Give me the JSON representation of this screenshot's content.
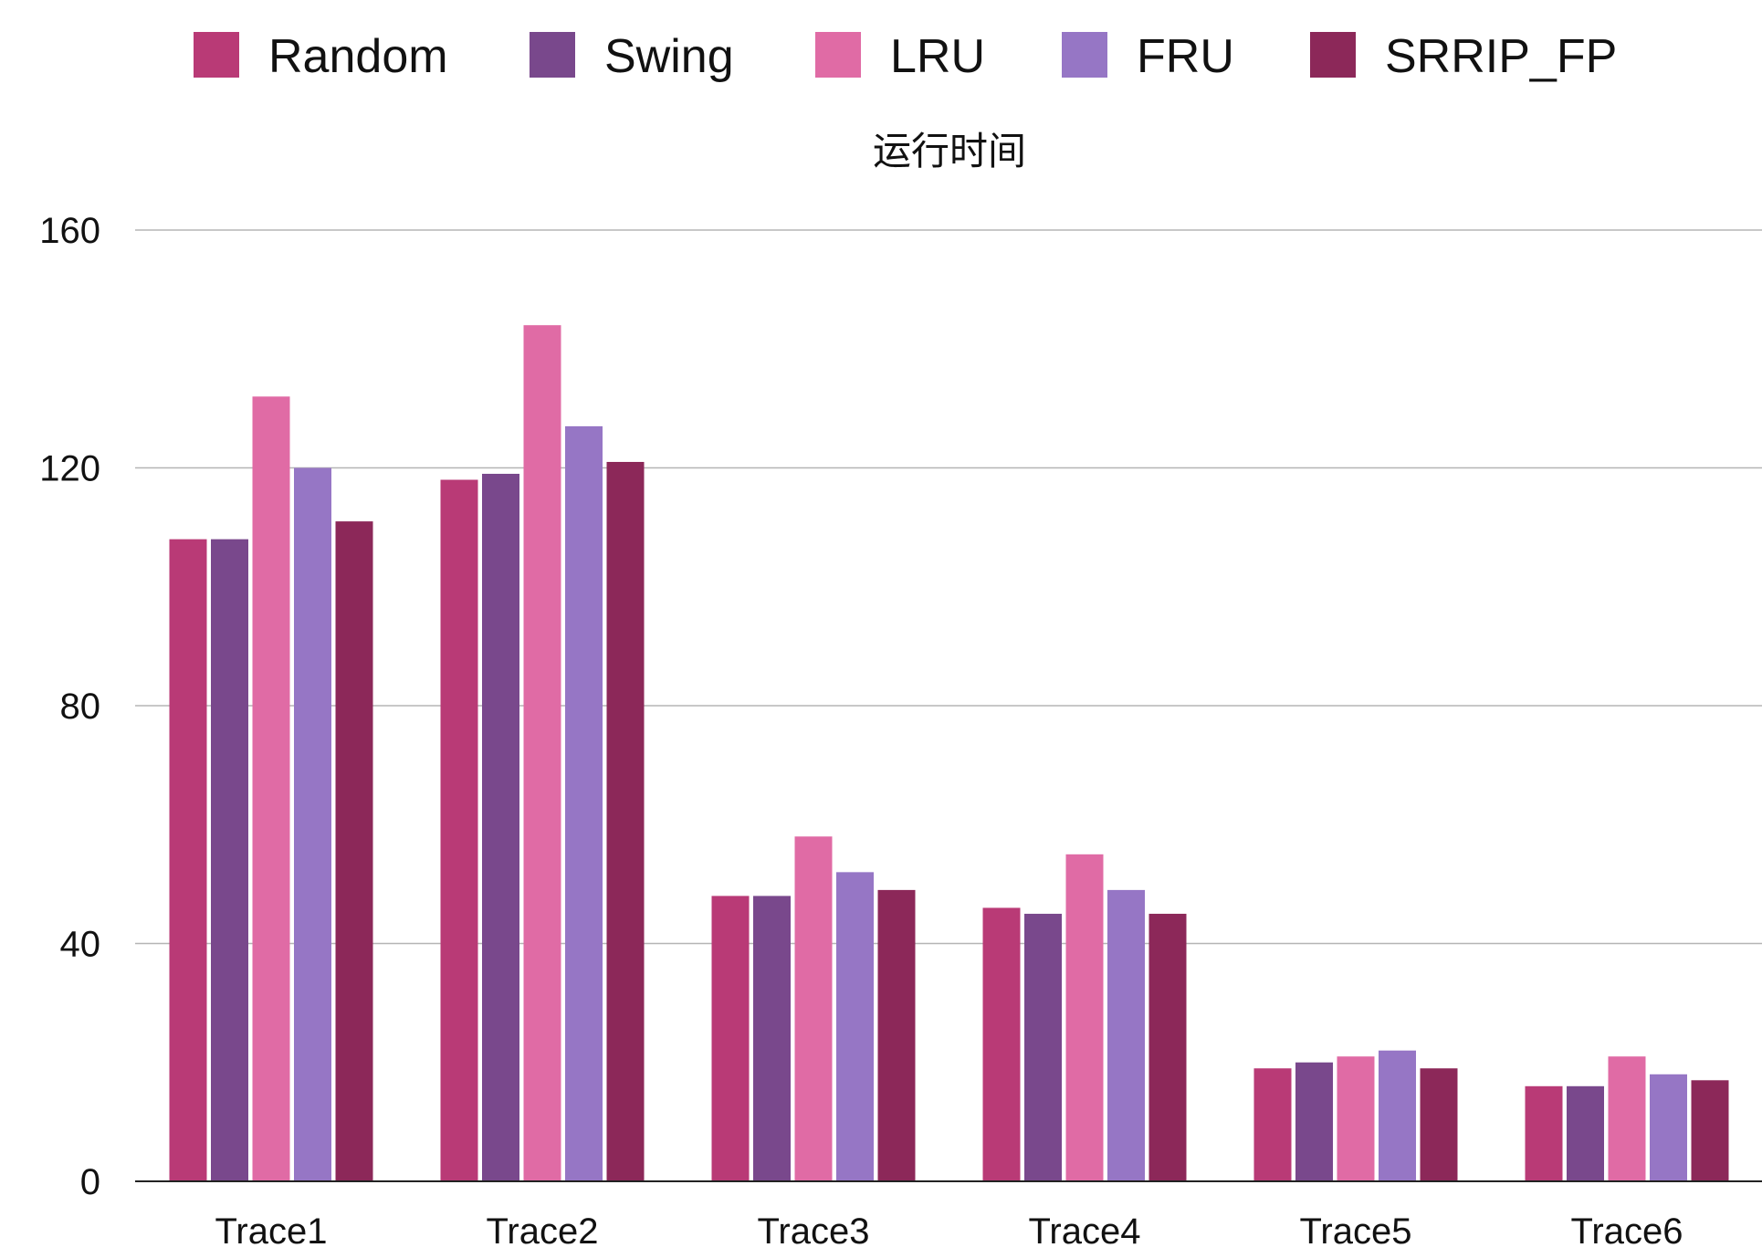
{
  "chart_data": {
    "type": "bar",
    "title": "运行时间",
    "xlabel": "",
    "ylabel": "",
    "ylim": [
      0,
      160
    ],
    "yticks": [
      0,
      40,
      80,
      120,
      160
    ],
    "grid": true,
    "legend_position": "top",
    "categories": [
      "Trace1",
      "Trace2",
      "Trace3",
      "Trace4",
      "Trace5",
      "Trace6"
    ],
    "series": [
      {
        "name": "Random",
        "color": "#b93a76",
        "values": [
          108,
          118,
          48,
          46,
          19,
          16
        ]
      },
      {
        "name": "Swing",
        "color": "#79488c",
        "values": [
          108,
          119,
          48,
          45,
          20,
          16
        ]
      },
      {
        "name": "LRU",
        "color": "#e06ba5",
        "values": [
          132,
          144,
          58,
          55,
          21,
          21
        ]
      },
      {
        "name": "FRU",
        "color": "#9676c5",
        "values": [
          120,
          127,
          52,
          49,
          22,
          18
        ]
      },
      {
        "name": "SRRIP_FP",
        "color": "#8c2859",
        "values": [
          111,
          121,
          49,
          45,
          19,
          17
        ]
      }
    ]
  }
}
